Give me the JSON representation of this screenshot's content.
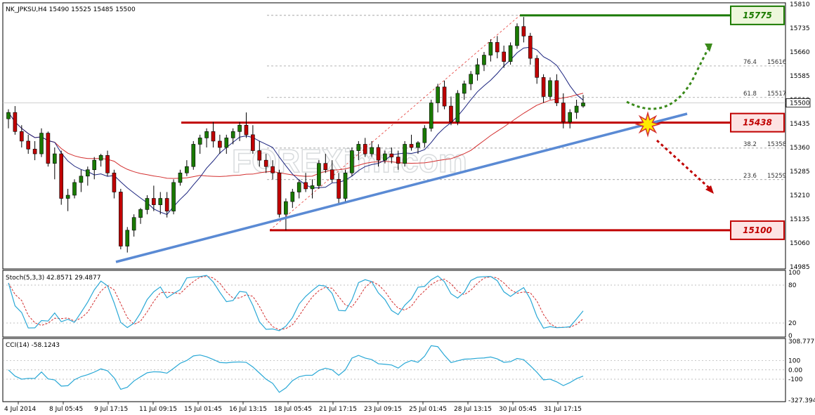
{
  "chart_data": {
    "type": "candlestick",
    "symbol_header": "NK_JPKSU,H4  15490 15525 15485 15500",
    "price_range": [
      14985,
      15810
    ],
    "price_ticks": [
      15810,
      15735,
      15660,
      15585,
      15510,
      15435,
      15360,
      15285,
      15210,
      15135,
      15060,
      14985
    ],
    "last_price": "15500",
    "x_labels": [
      "4 Jul 2014",
      "8 Jul 05:45",
      "9 Jul 17:15",
      "11 Jul 09:15",
      "15 Jul 01:45",
      "16 Jul 13:15",
      "18 Jul 05:45",
      "21 Jul 17:15",
      "23 Jul 09:15",
      "25 Jul 01:45",
      "28 Jul 13:15",
      "30 Jul 05:45",
      "31 Jul 17:15"
    ],
    "levels": [
      {
        "value": 15775,
        "label": "15775",
        "color": "#1a7a00"
      },
      {
        "value": 15438,
        "label": "15438",
        "color": "#c00000"
      },
      {
        "value": 15100,
        "label": "15100",
        "color": "#c00000"
      }
    ],
    "fibonacci": [
      {
        "ratio": "61.8",
        "value": "15517"
      },
      {
        "ratio": "76.4",
        "value": "15616"
      },
      {
        "ratio": "38.2",
        "value": "15358"
      },
      {
        "ratio": "23.6",
        "value": "15259"
      }
    ],
    "candles": [
      [
        15450,
        15480,
        15420,
        15470
      ],
      [
        15470,
        15490,
        15400,
        15410
      ],
      [
        15410,
        15430,
        15360,
        15380
      ],
      [
        15380,
        15400,
        15340,
        15355
      ],
      [
        15355,
        15380,
        15320,
        15340
      ],
      [
        15340,
        15420,
        15330,
        15405
      ],
      [
        15405,
        15410,
        15300,
        15310
      ],
      [
        15310,
        15360,
        15260,
        15340
      ],
      [
        15340,
        15350,
        15180,
        15200
      ],
      [
        15200,
        15230,
        15160,
        15210
      ],
      [
        15210,
        15260,
        15200,
        15250
      ],
      [
        15250,
        15290,
        15220,
        15270
      ],
      [
        15270,
        15300,
        15240,
        15290
      ],
      [
        15290,
        15330,
        15260,
        15320
      ],
      [
        15320,
        15340,
        15300,
        15335
      ],
      [
        15335,
        15350,
        15270,
        15280
      ],
      [
        15280,
        15290,
        15200,
        15220
      ],
      [
        15220,
        15230,
        15040,
        15050
      ],
      [
        15050,
        15110,
        15030,
        15100
      ],
      [
        15100,
        15150,
        15080,
        15140
      ],
      [
        15140,
        15170,
        15120,
        15165
      ],
      [
        15165,
        15210,
        15150,
        15200
      ],
      [
        15200,
        15240,
        15160,
        15180
      ],
      [
        15180,
        15220,
        15150,
        15200
      ],
      [
        15200,
        15220,
        15140,
        15160
      ],
      [
        15160,
        15260,
        15150,
        15250
      ],
      [
        15250,
        15290,
        15240,
        15280
      ],
      [
        15280,
        15320,
        15270,
        15300
      ],
      [
        15300,
        15380,
        15290,
        15370
      ],
      [
        15370,
        15400,
        15340,
        15390
      ],
      [
        15390,
        15420,
        15360,
        15410
      ],
      [
        15410,
        15440,
        15360,
        15380
      ],
      [
        15380,
        15400,
        15340,
        15360
      ],
      [
        15360,
        15400,
        15340,
        15390
      ],
      [
        15390,
        15420,
        15370,
        15410
      ],
      [
        15410,
        15440,
        15380,
        15430
      ],
      [
        15430,
        15470,
        15390,
        15400
      ],
      [
        15400,
        15430,
        15340,
        15350
      ],
      [
        15350,
        15380,
        15300,
        15320
      ],
      [
        15320,
        15340,
        15280,
        15300
      ],
      [
        15300,
        15320,
        15260,
        15280
      ],
      [
        15280,
        15290,
        15140,
        15150
      ],
      [
        15150,
        15200,
        15100,
        15190
      ],
      [
        15190,
        15230,
        15170,
        15220
      ],
      [
        15220,
        15260,
        15200,
        15250
      ],
      [
        15250,
        15280,
        15220,
        15230
      ],
      [
        15230,
        15260,
        15200,
        15240
      ],
      [
        15240,
        15320,
        15230,
        15310
      ],
      [
        15310,
        15340,
        15280,
        15290
      ],
      [
        15290,
        15320,
        15250,
        15260
      ],
      [
        15260,
        15280,
        15180,
        15200
      ],
      [
        15200,
        15290,
        15190,
        15280
      ],
      [
        15280,
        15360,
        15270,
        15350
      ],
      [
        15350,
        15380,
        15320,
        15370
      ],
      [
        15370,
        15390,
        15330,
        15340
      ],
      [
        15340,
        15380,
        15330,
        15360
      ],
      [
        15360,
        15370,
        15300,
        15320
      ],
      [
        15320,
        15350,
        15310,
        15340
      ],
      [
        15340,
        15360,
        15310,
        15330
      ],
      [
        15330,
        15350,
        15290,
        15310
      ],
      [
        15310,
        15380,
        15300,
        15370
      ],
      [
        15370,
        15400,
        15350,
        15360
      ],
      [
        15360,
        15380,
        15340,
        15375
      ],
      [
        15375,
        15430,
        15360,
        15420
      ],
      [
        15420,
        15510,
        15410,
        15500
      ],
      [
        15500,
        15560,
        15470,
        15550
      ],
      [
        15550,
        15570,
        15480,
        15490
      ],
      [
        15490,
        15520,
        15430,
        15440
      ],
      [
        15440,
        15540,
        15430,
        15530
      ],
      [
        15530,
        15570,
        15510,
        15560
      ],
      [
        15560,
        15600,
        15540,
        15590
      ],
      [
        15590,
        15640,
        15570,
        15620
      ],
      [
        15620,
        15660,
        15600,
        15650
      ],
      [
        15650,
        15700,
        15630,
        15690
      ],
      [
        15690,
        15710,
        15640,
        15660
      ],
      [
        15660,
        15680,
        15610,
        15630
      ],
      [
        15630,
        15690,
        15620,
        15680
      ],
      [
        15680,
        15750,
        15670,
        15740
      ],
      [
        15740,
        15770,
        15690,
        15710
      ],
      [
        15710,
        15720,
        15620,
        15640
      ],
      [
        15640,
        15650,
        15560,
        15580
      ],
      [
        15580,
        15590,
        15500,
        15520
      ],
      [
        15520,
        15580,
        15510,
        15570
      ],
      [
        15570,
        15590,
        15490,
        15500
      ],
      [
        15500,
        15530,
        15420,
        15440
      ],
      [
        15440,
        15480,
        15420,
        15470
      ],
      [
        15470,
        15510,
        15450,
        15490
      ],
      [
        15490,
        15525,
        15485,
        15500
      ]
    ],
    "stoch": {
      "label": "Stoch(5,3,3) 42.8571 29.4877",
      "ticks": [
        "100",
        "80",
        "20",
        "0"
      ]
    },
    "cci": {
      "label": "CCI(14) -58.1243",
      "ticks": [
        "308.7775",
        "100",
        "0.00",
        "-100",
        "-327.3941"
      ]
    },
    "colors": {
      "bull": "#1a7a00",
      "bear": "#c00000",
      "trend": "#5a8ad4",
      "ma_fast": "#1a237e",
      "ma_slow": "#d32f2f",
      "stoch_main": "#29a8d6",
      "stoch_signal": "#d32f2f",
      "cci": "#29a8d6"
    },
    "watermark": "FOREXimf.com"
  }
}
